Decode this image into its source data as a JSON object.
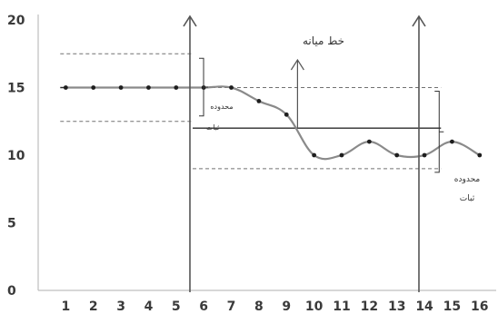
{
  "chart_data": {
    "type": "line",
    "title": "",
    "xlabel": "",
    "ylabel": "",
    "x": [
      1,
      2,
      3,
      4,
      5,
      6,
      7,
      8,
      9,
      10,
      11,
      12,
      13,
      14,
      15,
      16
    ],
    "xlim": [
      0,
      16.6
    ],
    "ylim": [
      0,
      20
    ],
    "x_ticks": [
      1,
      2,
      3,
      4,
      5,
      6,
      7,
      8,
      9,
      10,
      11,
      12,
      13,
      14,
      15,
      16
    ],
    "y_ticks": [
      0,
      5,
      10,
      15,
      20
    ],
    "grid": false,
    "legend": "none",
    "series": [
      {
        "name": "",
        "values": [
          15,
          15,
          15,
          15,
          15,
          15,
          15,
          14,
          13,
          10,
          10,
          11,
          10,
          10,
          11,
          10
        ]
      }
    ],
    "center_lines": [
      {
        "x_range": [
          0.8,
          5.6
        ],
        "y": 15
      },
      {
        "x_range": [
          5.6,
          14.6
        ],
        "y": 12
      }
    ],
    "control_limits": [
      {
        "x_range": [
          0.8,
          5.6
        ],
        "upper": 17.5,
        "lower": 12.5
      },
      {
        "x_range": [
          5.6,
          14.6
        ],
        "upper": 15,
        "lower": 9
      }
    ],
    "shift_markers_x": [
      5.5,
      13.8
    ],
    "annotations": {
      "center_line_label": "خط میانه",
      "stability_label_1_line1": "محدوده",
      "stability_label_1_line2": "ثبات",
      "stability_label_2_line1": "محدوده",
      "stability_label_2_line2": "ثبات"
    },
    "colors": {
      "series": "#8a8a8a",
      "point": "#1e1e1e",
      "axis": "#bfbfbf",
      "limits": "#707070",
      "center": "#2b2b2b",
      "tick_text": "#3a3a3a"
    }
  }
}
